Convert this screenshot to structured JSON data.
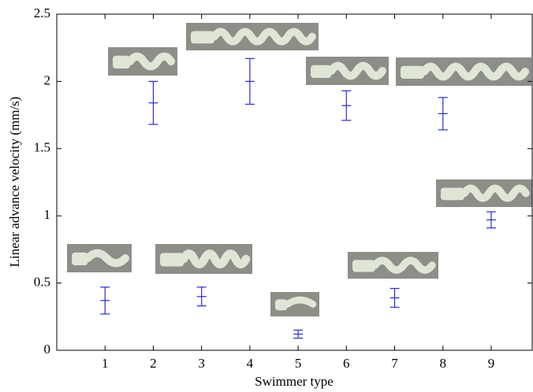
{
  "chart_data": {
    "type": "errorbar",
    "xlabel": "Swimmer type",
    "ylabel": "Linear advance velocity (mm/s)",
    "x": [
      1,
      2,
      3,
      4,
      5,
      6,
      7,
      8,
      9
    ],
    "values": [
      0.37,
      1.84,
      0.4,
      2.0,
      0.12,
      1.82,
      0.39,
      1.76,
      0.97
    ],
    "errors": [
      0.1,
      0.16,
      0.07,
      0.17,
      0.03,
      0.11,
      0.07,
      0.12,
      0.06
    ],
    "color": "#2b2bd6",
    "xlim": [
      0,
      9.85
    ],
    "ylim": [
      0,
      2.5
    ],
    "xticks": [
      1,
      2,
      3,
      4,
      5,
      6,
      7,
      8,
      9
    ],
    "yticks": [
      0,
      0.5,
      1,
      1.5,
      2,
      2.5
    ]
  }
}
